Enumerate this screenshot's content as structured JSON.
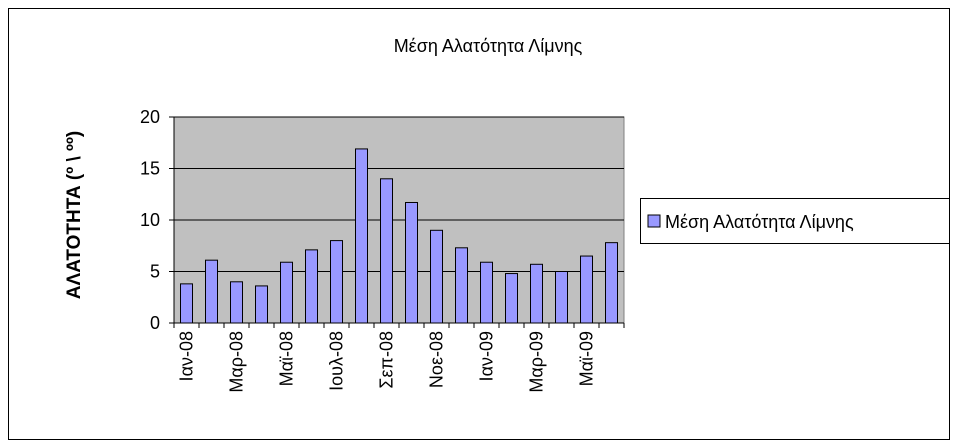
{
  "chart_data": {
    "type": "bar",
    "title": "Μέση Αλατότητα Λίμνης",
    "y_label": "ΑΛΑΤΟΤΗΤΑ (º \\ ºº)",
    "categories": [
      "Ιαν-08",
      null,
      "Μαρ-08",
      null,
      "Μαϊ-08",
      null,
      "Ιουλ-08",
      null,
      "Σεπ-08",
      null,
      "Νοε-08",
      null,
      "Ιαν-09",
      null,
      "Μαρ-09",
      null,
      "Μαϊ-09",
      null
    ],
    "series": [
      {
        "name": "Μέση Αλατότητα Λίμνης",
        "color": "#9999ff",
        "values": [
          3.8,
          6.1,
          4.0,
          3.6,
          5.9,
          7.1,
          8.0,
          16.9,
          14.0,
          11.7,
          9.0,
          7.3,
          5.9,
          4.8,
          5.7,
          5.0,
          6.5,
          7.8
        ]
      }
    ],
    "ylim": [
      0,
      20
    ],
    "yticks": [
      0,
      5,
      10,
      15,
      20
    ],
    "grid": true,
    "legend": "right"
  }
}
